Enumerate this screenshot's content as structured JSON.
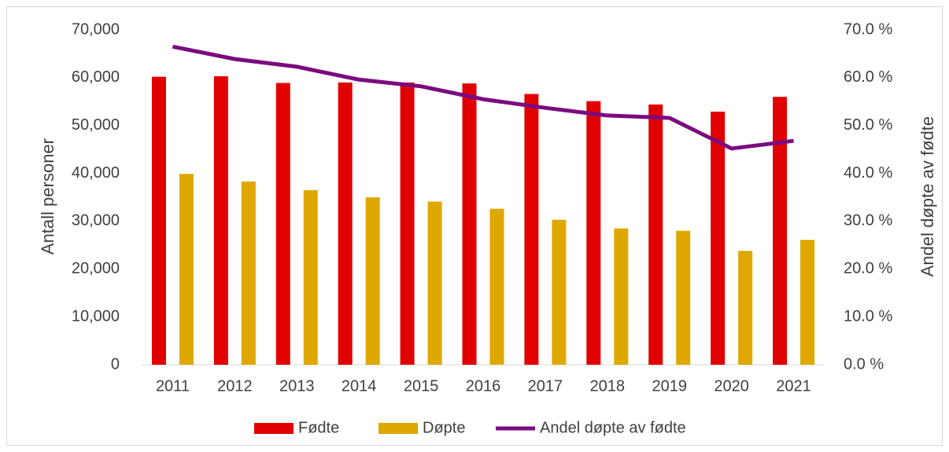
{
  "chart_data": {
    "type": "bar",
    "categories": [
      "2011",
      "2012",
      "2013",
      "2014",
      "2015",
      "2016",
      "2017",
      "2018",
      "2019",
      "2020",
      "2021"
    ],
    "series": [
      {
        "name": "Fødte",
        "color": "#e00000",
        "values": [
          60200,
          60300,
          58900,
          59000,
          59000,
          58800,
          56600,
          55100,
          54400,
          52900,
          56000
        ]
      },
      {
        "name": "Døpte",
        "color": "#dea800",
        "values": [
          39900,
          38300,
          36500,
          35000,
          34100,
          32600,
          30300,
          28500,
          28000,
          23800,
          26100
        ]
      },
      {
        "name": "Andel døpte av fødte",
        "color": "#7b0a7f",
        "type": "line",
        "axis": "y2",
        "values": [
          66.5,
          63.9,
          62.3,
          59.6,
          58.2,
          55.5,
          53.7,
          52.1,
          51.6,
          45.2,
          46.8
        ]
      }
    ],
    "ylabel": "Antall personer",
    "y2label": "Andel døpte av fødte",
    "ylim": [
      0,
      70000
    ],
    "yticks": [
      0,
      {
        "value": 10000,
        "label": "10,000"
      },
      {
        "value": 20000,
        "label": "20,000"
      },
      {
        "value": 30000,
        "label": "30,000"
      },
      {
        "value": 40000,
        "label": "40,000"
      },
      {
        "value": 50000,
        "label": "50,000"
      },
      {
        "value": 60000,
        "label": "60,000"
      },
      {
        "value": 70000,
        "label": "70,000"
      }
    ],
    "y2lim": [
      0,
      70
    ],
    "y2ticks": [
      {
        "value": 0,
        "label": "0.0 %"
      },
      {
        "value": 10,
        "label": "10.0 %"
      },
      {
        "value": 20,
        "label": "20.0 %"
      },
      {
        "value": 30,
        "label": "30.0 %"
      },
      {
        "value": 40,
        "label": "40.0 %"
      },
      {
        "value": 50,
        "label": "50.0 %"
      },
      {
        "value": 60,
        "label": "60.0 %"
      },
      {
        "value": 70,
        "label": "70.0 %"
      }
    ],
    "legend": "bottom",
    "grid": false
  }
}
